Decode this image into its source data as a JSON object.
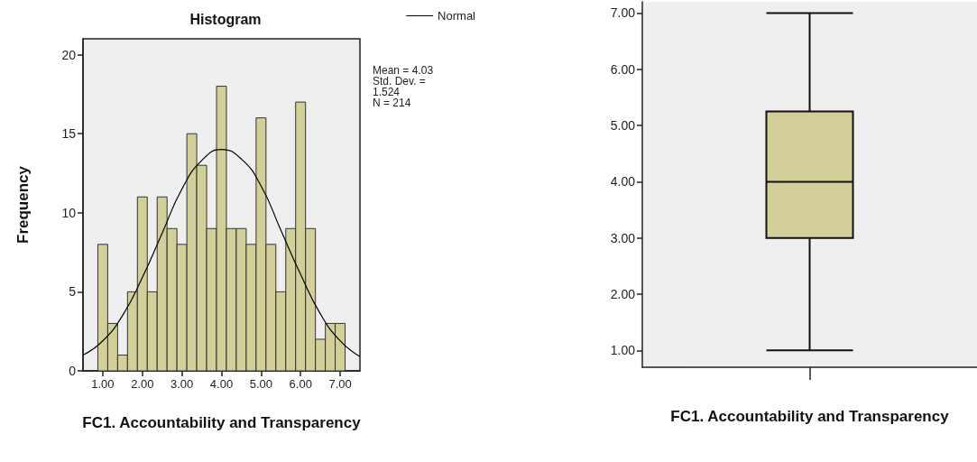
{
  "chart_data": [
    {
      "type": "histogram",
      "title": "Histogram",
      "xlabel": "FC1. Accountability and Transparency",
      "ylabel": "Frequency",
      "color": "#d3cf99",
      "bins": [
        0.875,
        1.125,
        1.375,
        1.625,
        1.875,
        2.125,
        2.375,
        2.625,
        2.875,
        3.125,
        3.375,
        3.625,
        3.875,
        4.125,
        4.375,
        4.625,
        4.875,
        5.125,
        5.375,
        5.625,
        5.875,
        6.125,
        6.375,
        6.625,
        6.875,
        7.125
      ],
      "values": [
        8,
        3,
        1,
        5,
        11,
        5,
        11,
        9,
        8,
        15,
        13,
        9,
        18,
        9,
        9,
        8,
        16,
        8,
        5,
        9,
        17,
        9,
        2,
        3,
        3
      ],
      "series": [
        {
          "type": "line",
          "name": "Normal",
          "color": "#000000",
          "x": [
            0.5,
            1,
            1.5,
            2,
            2.5,
            3,
            3.5,
            4,
            4.5,
            5,
            5.5,
            6,
            6.5,
            7,
            7.5
          ],
          "values": [
            1.0,
            1.9,
            3.5,
            5.9,
            8.7,
            11.5,
            13.3,
            14,
            13.4,
            11.7,
            8.9,
            6.1,
            3.6,
            1.9,
            0.9
          ]
        }
      ],
      "xlim": [
        0.5,
        7.5
      ],
      "xticks": [
        {
          "value": 1,
          "label": "1.00"
        },
        {
          "value": 2,
          "label": "2.00"
        },
        {
          "value": 3,
          "label": "3.00"
        },
        {
          "value": 4,
          "label": "4.00"
        },
        {
          "value": 5,
          "label": "5.00"
        },
        {
          "value": 6,
          "label": "6.00"
        },
        {
          "value": 7,
          "label": "7.00"
        }
      ],
      "ylim": [
        0,
        21
      ],
      "yticks": [
        0,
        5,
        10,
        15,
        20
      ],
      "legend": "top right",
      "annotations": [
        "Mean = 4.03",
        "Std. Dev. = 1.524",
        "N = 214"
      ]
    },
    {
      "type": "box",
      "categories": [
        null
      ],
      "xlabel": "FC1. Accountability and Transparency",
      "color": "#d3cf99",
      "boxes": [
        {
          "low": 1,
          "q1": 3,
          "median": 4,
          "q3": 5.25,
          "high": 7
        }
      ],
      "ylim": [
        0.7,
        7.2
      ],
      "yticks": [
        {
          "value": 1,
          "label": "1.00"
        },
        {
          "value": 2,
          "label": "2.00"
        },
        {
          "value": 3,
          "label": "3.00"
        },
        {
          "value": 4,
          "label": "4.00"
        },
        {
          "value": 5,
          "label": "5.00"
        },
        {
          "value": 6,
          "label": "6.00"
        },
        {
          "value": 7,
          "label": "7.00"
        }
      ]
    }
  ]
}
